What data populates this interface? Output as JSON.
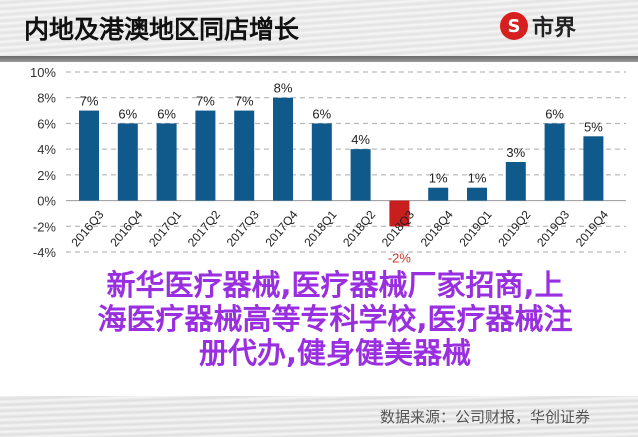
{
  "header": {
    "title": "内地及港澳地区同店增长",
    "logo_text": "市界",
    "logo_mark": "S"
  },
  "footer": {
    "source": "数据来源：公司财报，华创证券"
  },
  "watermark": {
    "lines": [
      "新华医疗器械,医疗器械厂家招商,上",
      "海医疗器械高等专科学校,医疗器械注",
      "册代办,健身健美器械"
    ]
  },
  "chart_data": {
    "type": "bar",
    "title": "内地及港澳地区同店增长",
    "categories": [
      "2016Q3",
      "2016Q4",
      "2017Q1",
      "2017Q2",
      "2017Q3",
      "2017Q4",
      "2018Q1",
      "2018Q2",
      "2018Q3",
      "2018Q4",
      "2019Q1",
      "2019Q2",
      "2019Q3",
      "2019Q4"
    ],
    "values": [
      7,
      6,
      6,
      7,
      7,
      8,
      6,
      4,
      -2,
      1,
      1,
      3,
      6,
      5
    ],
    "data_labels": [
      "7%",
      "6%",
      "6%",
      "7%",
      "7%",
      "8%",
      "6%",
      "4%",
      "-2%",
      "1%",
      "1%",
      "3%",
      "6%",
      "5%"
    ],
    "yticks": [
      "10%",
      "8%",
      "6%",
      "4%",
      "2%",
      "0%",
      "-2%",
      "-4%"
    ],
    "ylim": [
      -4,
      10
    ],
    "grid": "dashed horizontal",
    "colors": {
      "positive": "#0f5a8a",
      "negative": "#c81e1e",
      "negative_label": "#c0392b"
    }
  }
}
